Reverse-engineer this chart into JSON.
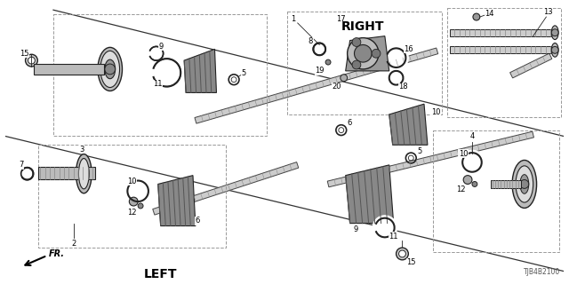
{
  "bg_color": "#ffffff",
  "line_color": "#222222",
  "right_label": "RIGHT",
  "left_label": "LEFT",
  "fr_label": "FR.",
  "diagram_code": "TJB4B2100",
  "figsize": [
    6.4,
    3.2
  ],
  "dpi": 100
}
